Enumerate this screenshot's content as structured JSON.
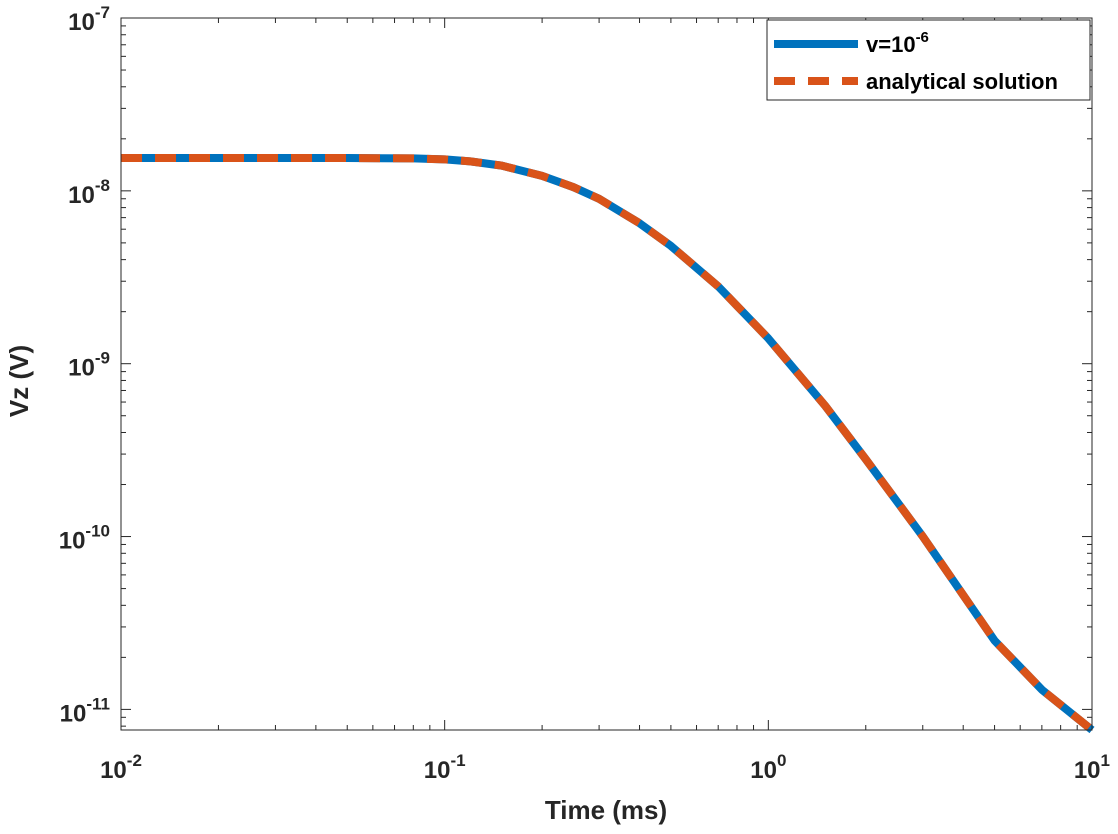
{
  "chart_data": {
    "type": "line",
    "scale": {
      "x": "log",
      "y": "log"
    },
    "title": "",
    "xlabel": "Time (ms)",
    "ylabel": "Vz (V)",
    "xlim": [
      0.01,
      10
    ],
    "ylim": [
      7.6e-12,
      1e-07
    ],
    "x_ticks": [
      {
        "base": "10",
        "exp": "-2",
        "value": 0.01
      },
      {
        "base": "10",
        "exp": "-1",
        "value": 0.1
      },
      {
        "base": "10",
        "exp": "0",
        "value": 1
      },
      {
        "base": "10",
        "exp": "1",
        "value": 10
      }
    ],
    "y_ticks": [
      {
        "base": "10",
        "exp": "-7",
        "value": 1e-07
      },
      {
        "base": "10",
        "exp": "-8",
        "value": 1e-08
      },
      {
        "base": "10",
        "exp": "-9",
        "value": 1e-09
      },
      {
        "base": "10",
        "exp": "-10",
        "value": 1e-10
      },
      {
        "base": "10",
        "exp": "-11",
        "value": 1e-11
      }
    ],
    "legend": {
      "location": "top-right",
      "entries": [
        {
          "base": "v=10",
          "exp": "-6"
        },
        {
          "base": "analytical solution",
          "exp": ""
        }
      ]
    },
    "series": [
      {
        "name": "v=10^-6",
        "color": "#0072BD",
        "style": "solid",
        "x": [
          0.01,
          0.02,
          0.05,
          0.08,
          0.1,
          0.12,
          0.15,
          0.2,
          0.25,
          0.3,
          0.4,
          0.5,
          0.7,
          1.0,
          1.5,
          2.0,
          3.0,
          5.0,
          7.0,
          10.0
        ],
        "y": [
          1.55e-08,
          1.55e-08,
          1.55e-08,
          1.54e-08,
          1.52e-08,
          1.48e-08,
          1.4e-08,
          1.22e-08,
          1.05e-08,
          9e-09,
          6.5e-09,
          4.8e-09,
          2.8e-09,
          1.4e-09,
          5.7e-10,
          2.8e-10,
          1e-10,
          2.5e-11,
          1.3e-11,
          7.6e-12
        ]
      },
      {
        "name": "analytical solution",
        "color": "#D95319",
        "style": "dashed",
        "x": [
          0.01,
          0.02,
          0.05,
          0.08,
          0.1,
          0.12,
          0.15,
          0.2,
          0.25,
          0.3,
          0.4,
          0.5,
          0.7,
          1.0,
          1.5,
          2.0,
          3.0,
          5.0,
          7.0,
          10.0
        ],
        "y": [
          1.55e-08,
          1.55e-08,
          1.55e-08,
          1.54e-08,
          1.52e-08,
          1.48e-08,
          1.4e-08,
          1.22e-08,
          1.05e-08,
          9e-09,
          6.5e-09,
          4.8e-09,
          2.8e-09,
          1.4e-09,
          5.7e-10,
          2.8e-10,
          1e-10,
          2.5e-11,
          1.3e-11,
          7.6e-12
        ]
      }
    ]
  }
}
